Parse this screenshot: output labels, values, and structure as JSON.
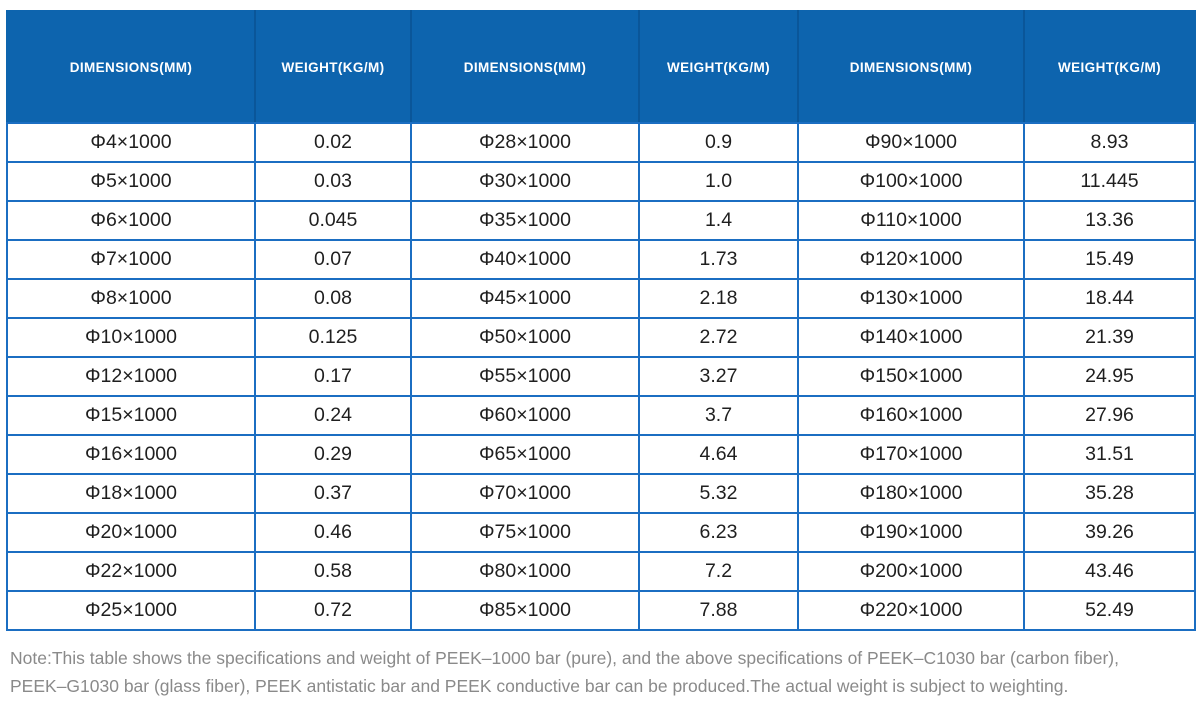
{
  "table": {
    "header_bg_color": "#0d64ae",
    "header_text_color": "#ffffff",
    "grid_border_color": "#1b6ec2",
    "cell_text_color": "#1f1f1f",
    "columns": [
      "DIMENSIONS(MM)",
      "WEIGHT(KG/M)",
      "DIMENSIONS(MM)",
      "WEIGHT(KG/M)",
      "DIMENSIONS(MM)",
      "WEIGHT(KG/M)"
    ],
    "rows": [
      [
        "Φ4×1000",
        "0.02",
        "Φ28×1000",
        "0.9",
        "Φ90×1000",
        "8.93"
      ],
      [
        "Φ5×1000",
        "0.03",
        "Φ30×1000",
        "1.0",
        "Φ100×1000",
        "11.445"
      ],
      [
        "Φ6×1000",
        "0.045",
        "Φ35×1000",
        "1.4",
        "Φ110×1000",
        "13.36"
      ],
      [
        "Φ7×1000",
        "0.07",
        "Φ40×1000",
        "1.73",
        "Φ120×1000",
        "15.49"
      ],
      [
        "Φ8×1000",
        "0.08",
        "Φ45×1000",
        "2.18",
        "Φ130×1000",
        "18.44"
      ],
      [
        "Φ10×1000",
        "0.125",
        "Φ50×1000",
        "2.72",
        "Φ140×1000",
        "21.39"
      ],
      [
        "Φ12×1000",
        "0.17",
        "Φ55×1000",
        "3.27",
        "Φ150×1000",
        "24.95"
      ],
      [
        "Φ15×1000",
        "0.24",
        "Φ60×1000",
        "3.7",
        "Φ160×1000",
        "27.96"
      ],
      [
        "Φ16×1000",
        "0.29",
        "Φ65×1000",
        "4.64",
        "Φ170×1000",
        "31.51"
      ],
      [
        "Φ18×1000",
        "0.37",
        "Φ70×1000",
        "5.32",
        "Φ180×1000",
        "35.28"
      ],
      [
        "Φ20×1000",
        "0.46",
        "Φ75×1000",
        "6.23",
        "Φ190×1000",
        "39.26"
      ],
      [
        "Φ22×1000",
        "0.58",
        "Φ80×1000",
        "7.2",
        "Φ200×1000",
        "43.46"
      ],
      [
        "Φ25×1000",
        "0.72",
        "Φ85×1000",
        "7.88",
        "Φ220×1000",
        "52.49"
      ]
    ]
  },
  "note": {
    "text_color": "#8a8a8a",
    "lines": [
      "Note:This table shows the specifications and weight of PEEK–1000 bar (pure), and the above specifications of PEEK–C1030 bar (carbon fiber),",
      "PEEK–G1030 bar (glass fiber), PEEK antistatic bar and PEEK conductive bar can be produced.The actual weight is subject to weighting."
    ]
  }
}
